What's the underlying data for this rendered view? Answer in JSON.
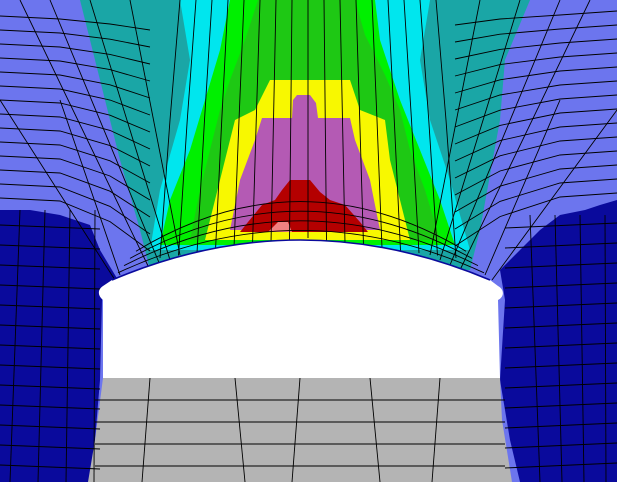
{
  "figure": {
    "kind": "finite element contour plot around tunnel opening",
    "colors": {
      "background": "#ffffff",
      "outer_blue": "#6c75ee",
      "dark_blue": "#0a0a9c",
      "teal": "#1aa6a6",
      "cyan": "#00e6ee",
      "green_light": "#00f000",
      "green": "#1ec814",
      "yellow": "#f8f800",
      "magenta": "#b45ab4",
      "red": "#b40000",
      "pink": "#f08080",
      "lining_gray": "#b4b4b4",
      "opening": "#ffffff",
      "mesh_line": "#000000"
    }
  }
}
